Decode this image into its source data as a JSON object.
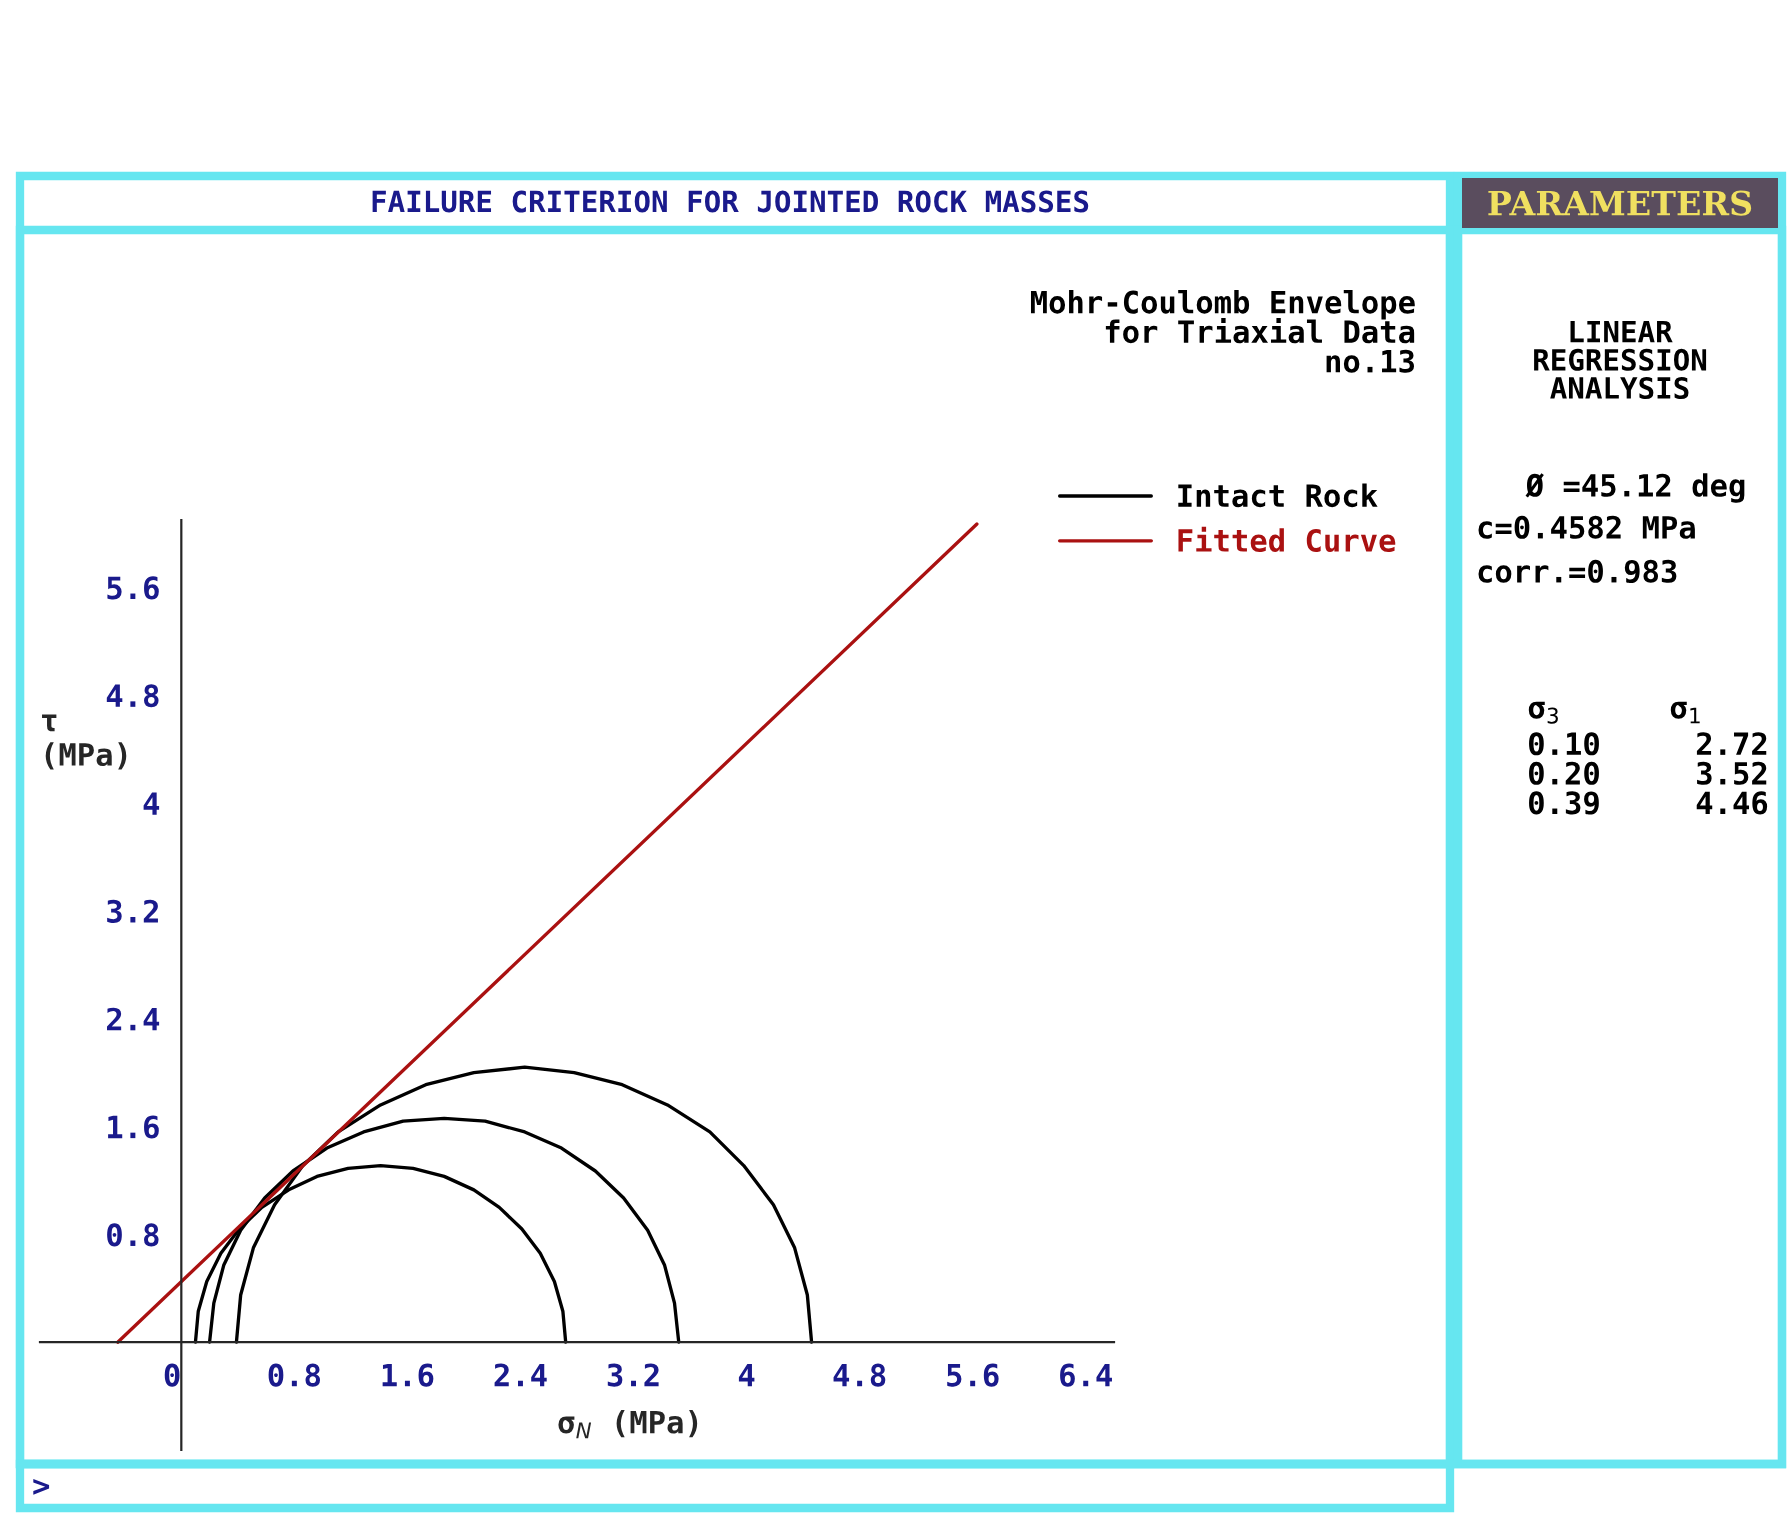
{
  "chart_data": {
    "type": "line",
    "title": "FAILURE CRITERION FOR JOINTED ROCK MASSES",
    "xlabel": "σ$_{N}$ (MPa)",
    "ylabel": "τ\n(MPa)",
    "xlim": [
      -1.0,
      6.6
    ],
    "ylim": [
      -0.8,
      6.1
    ],
    "xticks": [
      0,
      0.8,
      1.6,
      2.4,
      3.2,
      4,
      4.8,
      5.6,
      6.4
    ],
    "yticks": [
      0.8,
      1.6,
      2.4,
      3.2,
      4,
      4.8,
      5.6
    ],
    "series": [
      {
        "name": "Intact Rock",
        "color": "#000000",
        "x": [
          0.1,
          0.12,
          0.18,
          0.28,
          0.41,
          0.57,
          0.76,
          0.96,
          1.18,
          1.41,
          1.64,
          1.86,
          2.07,
          2.25,
          2.41,
          2.54,
          2.64,
          2.7,
          2.72
        ],
        "values": [
          0,
          0.23,
          0.45,
          0.66,
          0.84,
          1.0,
          1.13,
          1.23,
          1.29,
          1.31,
          1.29,
          1.23,
          1.13,
          1.0,
          0.84,
          0.66,
          0.45,
          0.23,
          0
        ]
      },
      {
        "color": "#000000",
        "x": [
          0.2,
          0.23,
          0.3,
          0.42,
          0.59,
          0.79,
          1.03,
          1.29,
          1.57,
          1.86,
          2.15,
          2.43,
          2.69,
          2.93,
          3.13,
          3.3,
          3.42,
          3.49,
          3.52
        ],
        "values": [
          0,
          0.29,
          0.57,
          0.83,
          1.07,
          1.27,
          1.44,
          1.56,
          1.64,
          1.66,
          1.64,
          1.56,
          1.44,
          1.27,
          1.07,
          0.83,
          0.57,
          0.29,
          0
        ]
      },
      {
        "color": "#000000",
        "x": [
          0.39,
          0.42,
          0.51,
          0.66,
          0.86,
          1.11,
          1.41,
          1.73,
          2.07,
          2.43,
          2.78,
          3.12,
          3.44,
          3.74,
          3.98,
          4.19,
          4.34,
          4.43,
          4.46
        ],
        "values": [
          0,
          0.35,
          0.7,
          1.02,
          1.31,
          1.56,
          1.76,
          1.91,
          2.0,
          2.04,
          2.0,
          1.91,
          1.76,
          1.56,
          1.31,
          1.02,
          0.7,
          0.35,
          0
        ]
      },
      {
        "name": "Fitted Curve",
        "color": "#aa1111",
        "x": [
          -0.45,
          5.63
        ],
        "values": [
          0,
          6.07
        ]
      }
    ],
    "legend": "top right",
    "grid": false,
    "marker": "none",
    "line_style": "solid",
    "annotations": [
      "Mohr-Coulomb Envelope\nfor Triaxial Data\nno.13",
      "PARAMETERS",
      "LINEAR\nREGRESSION\nANALYSIS",
      "Ø =45.12 deg",
      "c=0.4582 MPa",
      "corr.=0.983",
      "σ$_{3}$",
      "σ$_{1}$",
      "0.10\n0.20\n0.39",
      "2.72\n3.52\n4.46",
      ">"
    ]
  }
}
